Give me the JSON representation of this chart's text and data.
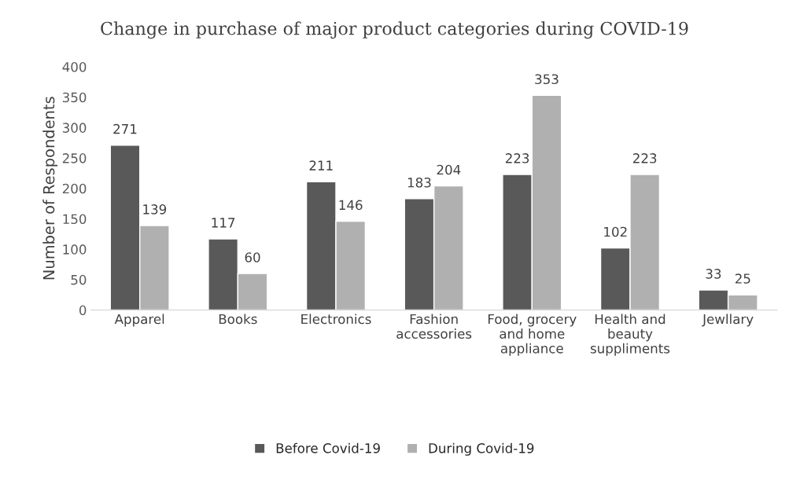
{
  "chart_data": {
    "type": "bar",
    "title": "Change in purchase of major product categories during COVID-19",
    "ylabel": "Number of Respondents",
    "categories": [
      "Apparel",
      "Books",
      "Electronics",
      "Fashion accessories",
      "Food, grocery and home appliance",
      "Health and beauty suppliments",
      "Jewllary"
    ],
    "series": [
      {
        "name": "Before Covid-19",
        "color": "#595959",
        "values": [
          271,
          117,
          211,
          183,
          223,
          102,
          33
        ]
      },
      {
        "name": "During Covid-19",
        "color": "#b0b0b0",
        "values": [
          139,
          60,
          146,
          204,
          353,
          223,
          25
        ]
      }
    ],
    "ylim": [
      0,
      400
    ],
    "yticks": [
      0,
      50,
      100,
      150,
      200,
      250,
      300,
      350,
      400
    ],
    "data_labels": true,
    "legend": "bottom",
    "grid": false
  }
}
